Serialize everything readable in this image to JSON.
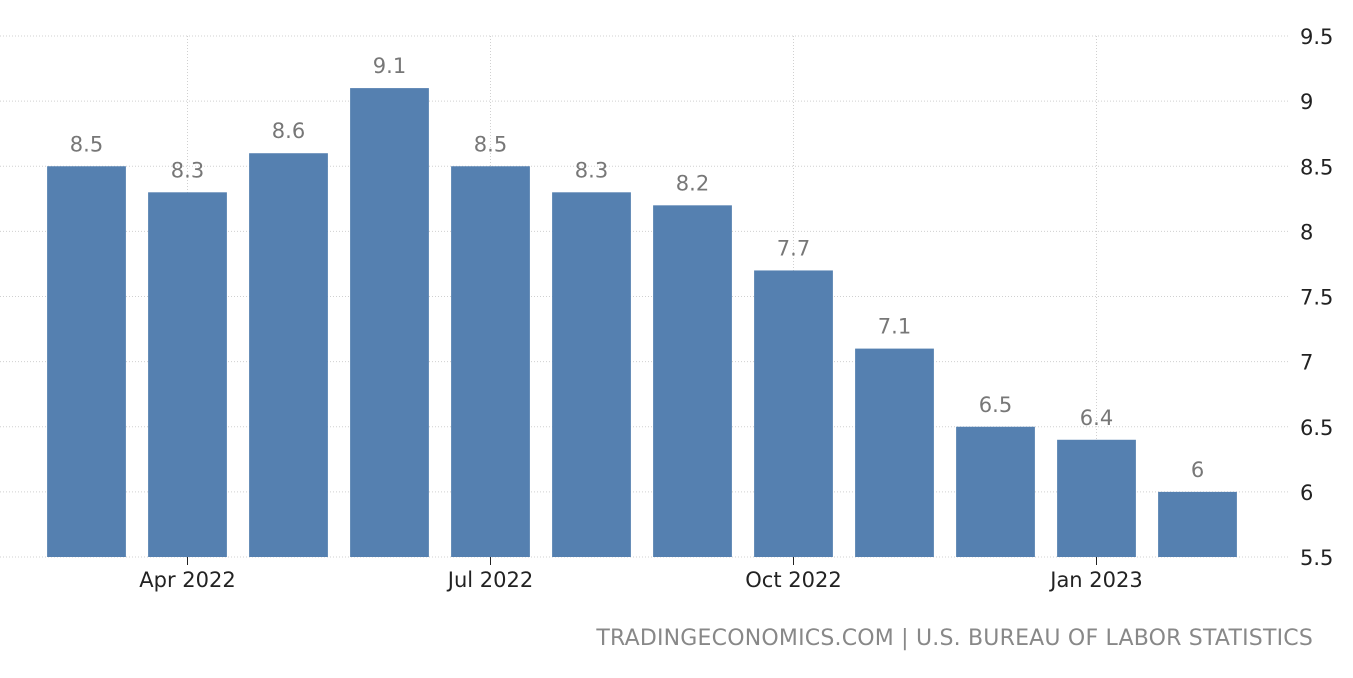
{
  "chart_data": {
    "type": "bar",
    "categories": [
      "Mar 2022",
      "Apr 2022",
      "May 2022",
      "Jun 2022",
      "Jul 2022",
      "Aug 2022",
      "Sep 2022",
      "Oct 2022",
      "Nov 2022",
      "Dec 2022",
      "Jan 2023",
      "Feb 2023"
    ],
    "values": [
      8.5,
      8.3,
      8.6,
      9.1,
      8.5,
      8.3,
      8.2,
      7.7,
      7.1,
      6.5,
      6.4,
      6
    ],
    "value_labels": [
      "8.5",
      "8.3",
      "8.6",
      "9.1",
      "8.5",
      "8.3",
      "8.2",
      "7.7",
      "7.1",
      "6.5",
      "6.4",
      "6"
    ],
    "x_tick_labels": [
      {
        "category_index": 1,
        "label": "Apr 2022"
      },
      {
        "category_index": 4,
        "label": "Jul 2022"
      },
      {
        "category_index": 7,
        "label": "Oct 2022"
      },
      {
        "category_index": 10,
        "label": "Jan 2023"
      }
    ],
    "y_ticks": [
      5.5,
      6,
      6.5,
      7,
      7.5,
      8,
      8.5,
      9,
      9.5
    ],
    "y_tick_labels": [
      "5.5",
      "6",
      "6.5",
      "7",
      "7.5",
      "8",
      "8.5",
      "9",
      "9.5"
    ],
    "ylim": [
      5.5,
      9.5
    ],
    "y_axis_position": "right",
    "grid": true,
    "title": "",
    "xlabel": "",
    "ylabel": "",
    "bar_color": "#5580b0"
  },
  "source": {
    "text": "TRADINGECONOMICS.COM | U.S. BUREAU OF LABOR STATISTICS"
  }
}
